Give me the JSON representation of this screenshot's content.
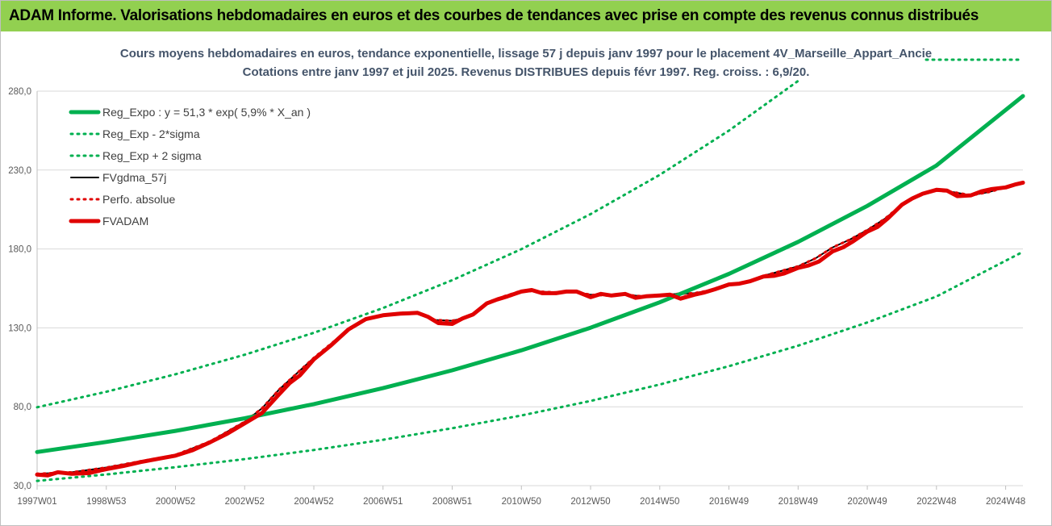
{
  "banner": {
    "title": "ADAM Informe. Valorisations hebdomadaires en euros et des courbes de tendances avec prise en compte des revenus connus distribués"
  },
  "colors": {
    "banner_bg": "#92d050",
    "reg": "#00b050",
    "fv": "#e00000",
    "gdma": "#000000",
    "perfo": "#e00000",
    "grid": "#d9d9d9"
  },
  "chart_data": {
    "type": "line",
    "title": "Cours moyens hebdomadaires en euros, tendance exponentielle, lissage 57 j depuis janv 1997  pour le placement 4V_Marseille_Appart_Ancie",
    "subtitle": "Cotations entre janv 1997 et juil 2025. Revenus DISTRIBUES depuis févr 1997. Reg. croiss. : 6,9/20.",
    "xlabel": "",
    "ylabel": "",
    "x_range": [
      1997.0,
      2025.5
    ],
    "ylim": [
      30,
      280
    ],
    "grid": "horizontal",
    "legend_position": "top-left",
    "y_ticks": [
      "30,0",
      "80,0",
      "130,0",
      "180,0",
      "230,0",
      "280,0"
    ],
    "x_ticks": [
      {
        "x": 1997.0,
        "label": "1997W01"
      },
      {
        "x": 1999.0,
        "label": "1998W53"
      },
      {
        "x": 2001.0,
        "label": "2000W52"
      },
      {
        "x": 2003.0,
        "label": "2002W52"
      },
      {
        "x": 2005.0,
        "label": "2004W52"
      },
      {
        "x": 2007.0,
        "label": "2006W51"
      },
      {
        "x": 2009.0,
        "label": "2008W51"
      },
      {
        "x": 2011.0,
        "label": "2010W50"
      },
      {
        "x": 2013.0,
        "label": "2012W50"
      },
      {
        "x": 2015.0,
        "label": "2014W50"
      },
      {
        "x": 2017.0,
        "label": "2016W49"
      },
      {
        "x": 2019.0,
        "label": "2018W49"
      },
      {
        "x": 2021.0,
        "label": "2020W49"
      },
      {
        "x": 2023.0,
        "label": "2022W48"
      },
      {
        "x": 2025.0,
        "label": "2024W48"
      }
    ],
    "series": [
      {
        "name": "Reg_Expo : y = 51,3 * exp( 5,9% *  X_an )",
        "style": "solid-thick",
        "color": "#00b050",
        "x": [
          1997.0,
          1999.0,
          2001.0,
          2003.0,
          2005.0,
          2007.0,
          2009.0,
          2011.0,
          2013.0,
          2015.0,
          2017.0,
          2019.0,
          2021.0,
          2023.0,
          2025.5
        ],
        "values": [
          51.3,
          57.7,
          64.7,
          72.7,
          81.7,
          91.8,
          103.1,
          115.8,
          130.1,
          146.2,
          164.2,
          184.5,
          207.3,
          232.9,
          276.9
        ]
      },
      {
        "name": "Reg_Exp - 2*sigma",
        "style": "dotted",
        "color": "#00b050",
        "x": [
          1997.0,
          1999.0,
          2001.0,
          2003.0,
          2005.0,
          2007.0,
          2009.0,
          2011.0,
          2013.0,
          2015.0,
          2017.0,
          2019.0,
          2021.0,
          2023.0,
          2025.5
        ],
        "values": [
          33.0,
          37.1,
          41.7,
          46.8,
          52.6,
          59.1,
          66.4,
          74.5,
          83.7,
          94.1,
          105.7,
          118.7,
          133.4,
          149.9,
          178.2
        ]
      },
      {
        "name": "Reg_Exp + 2 sigma",
        "style": "dotted",
        "color": "#00b050",
        "x": [
          1997.0,
          1999.0,
          2001.0,
          2003.0,
          2005.0,
          2007.0,
          2009.0,
          2011.0,
          2013.0,
          2015.0,
          2017.0,
          2019.0
        ],
        "values": [
          79.7,
          89.5,
          100.6,
          113.0,
          126.9,
          142.6,
          160.2,
          179.9,
          202.1,
          227.0,
          255.0,
          286.5
        ]
      },
      {
        "name": "FVgdma_57j",
        "style": "solid",
        "color": "#000000",
        "x": [
          1997.0,
          1998.0,
          1999.0,
          2000.0,
          2001.0,
          2002.0,
          2003.0,
          2003.5,
          2004.0,
          2004.5,
          2005.0,
          2005.5,
          2006.0,
          2006.5,
          2007.0,
          2007.5,
          2008.0,
          2008.5,
          2009.0,
          2009.5,
          2010.0,
          2010.5,
          2011.0,
          2011.5,
          2012.0,
          2012.5,
          2013.0,
          2013.5,
          2014.0,
          2014.5,
          2015.0,
          2015.5,
          2016.0,
          2016.5,
          2017.0,
          2017.5,
          2018.0,
          2018.5,
          2019.0,
          2019.5,
          2020.0,
          2020.5,
          2021.0,
          2021.5,
          2022.0,
          2022.5,
          2023.0,
          2023.5,
          2024.0,
          2024.5,
          2025.0,
          2025.5
        ],
        "values": [
          37.5,
          38.5,
          41.5,
          45.5,
          49.5,
          58.0,
          70.5,
          79.0,
          91.0,
          101.0,
          111.0,
          120.0,
          129.0,
          135.0,
          138.0,
          139.5,
          139.5,
          135.0,
          134.5,
          137.0,
          146.0,
          150.0,
          153.5,
          153.0,
          152.5,
          153.0,
          151.0,
          150.5,
          151.0,
          150.0,
          150.5,
          151.5,
          152.0,
          154.0,
          157.0,
          159.0,
          163.0,
          166.0,
          169.0,
          174.0,
          181.0,
          186.0,
          192.0,
          199.0,
          208.0,
          214.0,
          217.0,
          216.0,
          214.0,
          216.0,
          219.0,
          222.0
        ]
      },
      {
        "name": "Perfo. absolue",
        "style": "dotted",
        "color": "#e00000",
        "x": [
          1997.0,
          1998.0,
          1999.0,
          2000.0,
          2001.0,
          2002.0,
          2003.0,
          2003.5,
          2004.0,
          2004.5,
          2005.0,
          2005.5,
          2006.0,
          2006.5,
          2007.0,
          2007.5,
          2008.0,
          2008.5,
          2009.0,
          2009.5,
          2010.0,
          2010.5,
          2011.0,
          2011.5,
          2012.0,
          2012.5,
          2013.0,
          2013.5,
          2014.0,
          2014.5,
          2015.0,
          2015.5,
          2016.0,
          2016.5,
          2017.0,
          2017.5,
          2018.0,
          2018.5,
          2019.0,
          2019.5,
          2020.0,
          2020.5,
          2021.0,
          2021.5,
          2022.0,
          2022.5,
          2023.0,
          2023.5,
          2024.0,
          2024.5,
          2025.0,
          2025.5
        ],
        "values": [
          37.5,
          38.5,
          41.5,
          45.5,
          49.5,
          58.0,
          70.5,
          79.0,
          91.0,
          101.0,
          111.0,
          120.0,
          129.0,
          135.0,
          138.0,
          139.5,
          139.5,
          135.0,
          134.5,
          137.0,
          146.0,
          150.0,
          153.5,
          153.0,
          152.5,
          153.0,
          151.0,
          150.5,
          151.0,
          150.0,
          150.5,
          151.5,
          152.0,
          154.0,
          157.0,
          159.0,
          163.0,
          166.0,
          169.0,
          174.0,
          181.0,
          186.0,
          192.0,
          199.0,
          208.0,
          214.0,
          217.0,
          216.0,
          214.0,
          216.0,
          219.0,
          222.0
        ]
      },
      {
        "name": "FVADAM",
        "style": "solid-thick",
        "color": "#e00000",
        "x": [
          1997.0,
          1997.3,
          1997.6,
          1998.0,
          1998.5,
          1999.0,
          1999.5,
          2000.0,
          2000.5,
          2001.0,
          2001.5,
          2002.0,
          2002.5,
          2003.0,
          2003.5,
          2004.0,
          2004.3,
          2004.6,
          2005.0,
          2005.5,
          2006.0,
          2006.5,
          2007.0,
          2007.5,
          2008.0,
          2008.3,
          2008.6,
          2009.0,
          2009.3,
          2009.6,
          2010.0,
          2010.3,
          2010.6,
          2011.0,
          2011.3,
          2011.6,
          2012.0,
          2012.3,
          2012.6,
          2013.0,
          2013.3,
          2013.6,
          2014.0,
          2014.3,
          2014.6,
          2015.0,
          2015.3,
          2015.6,
          2016.0,
          2016.3,
          2016.6,
          2017.0,
          2017.3,
          2017.6,
          2018.0,
          2018.3,
          2018.6,
          2019.0,
          2019.3,
          2019.6,
          2020.0,
          2020.3,
          2020.6,
          2021.0,
          2021.3,
          2021.6,
          2022.0,
          2022.3,
          2022.6,
          2023.0,
          2023.3,
          2023.6,
          2024.0,
          2024.3,
          2024.6,
          2025.0,
          2025.3,
          2025.5
        ],
        "values": [
          37.0,
          36.5,
          38.5,
          37.5,
          38.0,
          40.5,
          42.5,
          45.0,
          47.0,
          49.0,
          52.5,
          57.5,
          63.0,
          69.5,
          76.0,
          88.0,
          95.0,
          100.0,
          110.0,
          119.0,
          129.0,
          135.5,
          138.0,
          139.0,
          139.5,
          137.0,
          133.0,
          132.5,
          136.0,
          138.5,
          145.5,
          148.0,
          150.0,
          153.0,
          154.0,
          152.0,
          152.0,
          153.0,
          153.0,
          149.5,
          151.5,
          150.5,
          151.5,
          149.0,
          150.0,
          150.5,
          151.0,
          148.5,
          151.0,
          152.5,
          154.5,
          157.5,
          158.0,
          159.5,
          162.5,
          163.0,
          164.5,
          168.0,
          169.5,
          172.0,
          178.5,
          181.0,
          185.0,
          191.0,
          194.0,
          199.5,
          208.0,
          212.0,
          215.0,
          217.5,
          217.0,
          213.5,
          214.0,
          216.5,
          218.0,
          219.0,
          221.0,
          222.0
        ]
      }
    ]
  }
}
